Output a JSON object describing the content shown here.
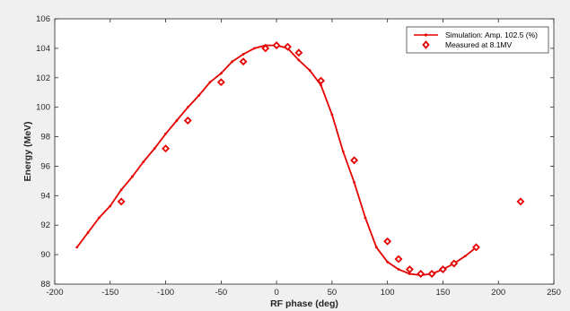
{
  "chart_data": {
    "type": "line",
    "xlabel": "RF phase (deg)",
    "ylabel": "Energy (MeV)",
    "xlim": [
      -200,
      250
    ],
    "ylim": [
      88,
      106
    ],
    "xticks": [
      -200,
      -150,
      -100,
      -50,
      0,
      50,
      100,
      150,
      200,
      250
    ],
    "yticks": [
      88,
      90,
      92,
      94,
      96,
      98,
      100,
      102,
      104,
      106
    ],
    "grid": false,
    "legend_position": "top-right",
    "colors": {
      "series": "#e60000",
      "axes": "#262626",
      "background": "#ffffff",
      "figure": "#f0f0f0"
    },
    "series": [
      {
        "name": "Simulation: Amp. 102.5 (%)",
        "style": "line-with-dot-markers",
        "x": [
          -180,
          -170,
          -160,
          -150,
          -140,
          -130,
          -120,
          -110,
          -100,
          -90,
          -80,
          -70,
          -60,
          -50,
          -40,
          -30,
          -20,
          -10,
          0,
          10,
          20,
          30,
          40,
          50,
          60,
          70,
          80,
          90,
          100,
          110,
          120,
          130,
          140,
          150,
          160,
          170,
          180
        ],
        "y": [
          90.5,
          91.5,
          92.5,
          93.3,
          94.4,
          95.3,
          96.3,
          97.2,
          98.2,
          99.1,
          100.0,
          100.8,
          101.7,
          102.3,
          103.1,
          103.6,
          104.0,
          104.2,
          104.2,
          104.0,
          103.2,
          102.5,
          101.5,
          99.5,
          97.0,
          94.9,
          92.5,
          90.5,
          89.5,
          89.0,
          88.7,
          88.6,
          88.7,
          89.0,
          89.4,
          89.9,
          90.5
        ]
      },
      {
        "name": "Measured at 8.1MV",
        "style": "diamond-markers",
        "x": [
          -140,
          -100,
          -80,
          -50,
          -30,
          -10,
          0,
          10,
          20,
          40,
          70,
          100,
          110,
          120,
          130,
          140,
          150,
          160,
          180,
          220
        ],
        "y": [
          93.6,
          97.2,
          99.1,
          101.7,
          103.1,
          104.0,
          104.2,
          104.1,
          103.7,
          101.8,
          96.4,
          90.9,
          89.7,
          89.0,
          88.7,
          88.7,
          89.0,
          89.4,
          90.5,
          93.6
        ]
      }
    ]
  }
}
